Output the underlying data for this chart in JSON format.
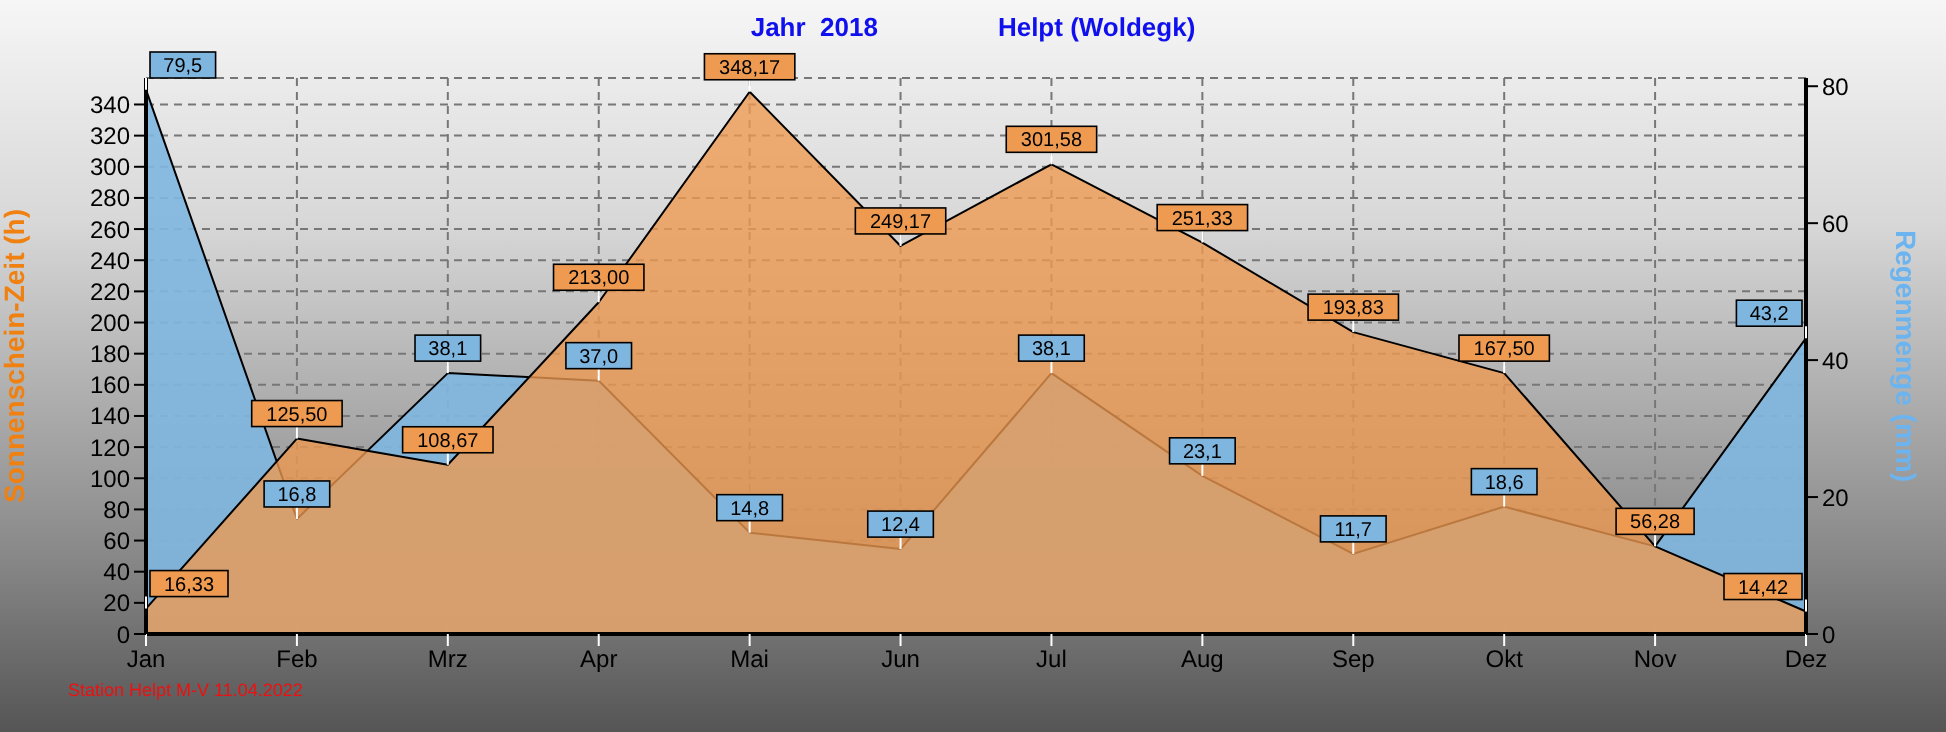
{
  "chart_data": {
    "type": "area",
    "title": "Jahr  2018",
    "subtitle": "Helpt (Woldegk)",
    "ylabel": "Sonnenschein-Zeit  (h)",
    "y2label": "Regenmenge  (mm)",
    "categories": [
      "Jan",
      "Feb",
      "Mrz",
      "Apr",
      "Mai",
      "Jun",
      "Jul",
      "Aug",
      "Sep",
      "Okt",
      "Nov",
      "Dez"
    ],
    "series": [
      {
        "axis": "y2",
        "color": "#7fb6e0",
        "values": [
          79.5,
          16.8,
          38.1,
          37.0,
          14.8,
          12.4,
          38.1,
          23.1,
          11.7,
          18.6,
          12.8,
          43.2
        ],
        "value_labels": [
          "79,5",
          "16,8",
          "38,1",
          "37,0",
          "14,8",
          "12,4",
          "38,1",
          "23,1",
          "11,7",
          "18,6",
          null,
          "43,2"
        ]
      },
      {
        "color": "#ee9a50",
        "values": [
          16.33,
          125.5,
          108.67,
          213.0,
          348.17,
          249.17,
          301.58,
          251.33,
          193.83,
          167.5,
          56.28,
          14.42
        ],
        "value_labels": [
          "16,33",
          "125,50",
          "108,67",
          "213,00",
          "348,17",
          "249,17",
          "301,58",
          "251,33",
          "193,83",
          "167,50",
          "56,28",
          "14,42"
        ]
      }
    ],
    "ylim": [
      0,
      357
    ],
    "yticks": [
      0,
      20,
      40,
      60,
      80,
      100,
      120,
      140,
      160,
      180,
      200,
      220,
      240,
      260,
      280,
      300,
      320,
      340
    ],
    "y2lim": [
      0,
      81.2
    ],
    "y2ticks": [
      0,
      20,
      40,
      60,
      80
    ],
    "grid": true,
    "legend": false,
    "annotations": [
      "Station Helpt M-V  11.04.2022"
    ]
  }
}
